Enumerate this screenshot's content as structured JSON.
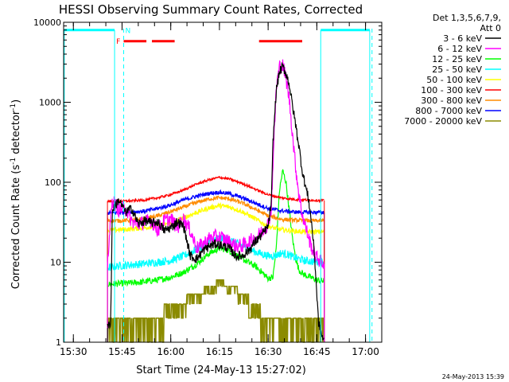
{
  "chart_data": {
    "type": "line",
    "title": "HESSI Observing Summary Count Rates, Corrected",
    "xlabel": "Start Time (24-May-13 15:27:02)",
    "ylabel_main": "Corrected Count Rate (s",
    "ylabel_sup1": "-1",
    "ylabel_mid": " detector",
    "ylabel_sup2": "-1",
    "ylabel_end": ")",
    "xlim_min": [
      927,
      1025
    ],
    "x_ticks": [
      {
        "min": 930,
        "label": "15:30"
      },
      {
        "min": 945,
        "label": "15:45"
      },
      {
        "min": 960,
        "label": "16:00"
      },
      {
        "min": 975,
        "label": "16:15"
      },
      {
        "min": 990,
        "label": "16:30"
      },
      {
        "min": 1005,
        "label": "16:45"
      },
      {
        "min": 1020,
        "label": "17:00"
      }
    ],
    "y_scale": "log",
    "ylim": [
      1,
      10000
    ],
    "y_ticks": [
      {
        "value": 1,
        "label": "1"
      },
      {
        "value": 10,
        "label": "10"
      },
      {
        "value": 100,
        "label": "100"
      },
      {
        "value": 1000,
        "label": "1000"
      },
      {
        "value": 10000,
        "label": "10000"
      }
    ],
    "legend_header": [
      "Det 1,3,5,6,7,9,",
      "Att 0"
    ],
    "series": [
      {
        "name": "3 - 6 keV",
        "color": "#000000",
        "points": [
          [
            940.5,
            1.5
          ],
          [
            941.5,
            1.8
          ],
          [
            942,
            45
          ],
          [
            944,
            60
          ],
          [
            946,
            42
          ],
          [
            948,
            47
          ],
          [
            950,
            30
          ],
          [
            952,
            33
          ],
          [
            954,
            31
          ],
          [
            956,
            32
          ],
          [
            958,
            25
          ],
          [
            960,
            27
          ],
          [
            962,
            32
          ],
          [
            964,
            28
          ],
          [
            966,
            12
          ],
          [
            968,
            11
          ],
          [
            970,
            14
          ],
          [
            972,
            16
          ],
          [
            974,
            17
          ],
          [
            976,
            16
          ],
          [
            978,
            15
          ],
          [
            980,
            12
          ],
          [
            982,
            12
          ],
          [
            984,
            14
          ],
          [
            986,
            18
          ],
          [
            988,
            22
          ],
          [
            990,
            28
          ],
          [
            991,
            55
          ],
          [
            991.5,
            320
          ],
          [
            992.5,
            1400
          ],
          [
            993.5,
            2400
          ],
          [
            994.5,
            2800
          ],
          [
            995.5,
            2300
          ],
          [
            996.5,
            1700
          ],
          [
            997.5,
            900
          ],
          [
            998.5,
            520
          ],
          [
            999.5,
            280
          ],
          [
            1000.5,
            140
          ],
          [
            1001.5,
            90
          ],
          [
            1002.5,
            60
          ],
          [
            1003.5,
            28
          ],
          [
            1004.3,
            12
          ],
          [
            1005.5,
            1.8
          ],
          [
            1006.3,
            1.3
          ],
          [
            1007.3,
            1.0
          ]
        ]
      },
      {
        "name": "6 - 12 keV",
        "color": "#ff00ff",
        "points": [
          [
            940.5,
            10
          ],
          [
            942,
            60
          ],
          [
            944,
            45
          ],
          [
            946,
            48
          ],
          [
            948,
            32
          ],
          [
            950,
            30
          ],
          [
            952,
            32
          ],
          [
            954,
            33
          ],
          [
            956,
            25
          ],
          [
            958,
            33
          ],
          [
            960,
            35
          ],
          [
            962,
            27
          ],
          [
            964,
            35
          ],
          [
            966,
            25
          ],
          [
            968,
            15
          ],
          [
            970,
            17
          ],
          [
            972,
            20
          ],
          [
            974,
            21
          ],
          [
            976,
            20
          ],
          [
            978,
            18
          ],
          [
            980,
            16
          ],
          [
            982,
            16
          ],
          [
            984,
            18
          ],
          [
            986,
            20
          ],
          [
            988,
            24
          ],
          [
            990,
            30
          ],
          [
            991,
            48
          ],
          [
            991.5,
            180
          ],
          [
            992.5,
            1500
          ],
          [
            993.5,
            2800
          ],
          [
            994.5,
            2900
          ],
          [
            995.5,
            2000
          ],
          [
            996.5,
            1100
          ],
          [
            997.5,
            400
          ],
          [
            998.5,
            150
          ],
          [
            999.5,
            70
          ],
          [
            1000.5,
            40
          ],
          [
            1001.5,
            28
          ],
          [
            1002.5,
            20
          ],
          [
            1003.5,
            15
          ],
          [
            1004.5,
            12
          ],
          [
            1005.5,
            11
          ],
          [
            1006.5,
            10
          ],
          [
            1007.3,
            9.5
          ]
        ]
      },
      {
        "name": "12 - 25 keV",
        "color": "#00ff00",
        "points": [
          [
            940.5,
            5.3
          ],
          [
            944,
            5.4
          ],
          [
            948,
            5.5
          ],
          [
            952,
            5.7
          ],
          [
            956,
            6.0
          ],
          [
            960,
            6.5
          ],
          [
            964,
            7.5
          ],
          [
            968,
            9.5
          ],
          [
            972,
            13
          ],
          [
            975,
            15
          ],
          [
            978,
            14
          ],
          [
            982,
            11
          ],
          [
            986,
            9
          ],
          [
            990,
            6.3
          ],
          [
            991.5,
            6.5
          ],
          [
            992.5,
            15
          ],
          [
            993.5,
            80
          ],
          [
            994.5,
            140
          ],
          [
            995.5,
            100
          ],
          [
            996.5,
            45
          ],
          [
            997.5,
            20
          ],
          [
            998.5,
            11
          ],
          [
            999.5,
            8
          ],
          [
            1001,
            7
          ],
          [
            1003,
            6.5
          ],
          [
            1005,
            6.0
          ],
          [
            1007.3,
            5.8
          ]
        ]
      },
      {
        "name": "25 - 50 keV",
        "color": "#00ffff",
        "points": [
          [
            940.5,
            8.5
          ],
          [
            944,
            9.0
          ],
          [
            948,
            9.3
          ],
          [
            952,
            9.6
          ],
          [
            956,
            10
          ],
          [
            960,
            10.5
          ],
          [
            964,
            12
          ],
          [
            968,
            14.5
          ],
          [
            972,
            18
          ],
          [
            975,
            20
          ],
          [
            978,
            19
          ],
          [
            982,
            16
          ],
          [
            986,
            13.5
          ],
          [
            990,
            12
          ],
          [
            992,
            12
          ],
          [
            994,
            13
          ],
          [
            996,
            12.5
          ],
          [
            998,
            11.5
          ],
          [
            1001,
            10.5
          ],
          [
            1004,
            10.2
          ],
          [
            1007.3,
            10
          ]
        ]
      },
      {
        "name": "50 - 100 keV",
        "color": "#ffff00",
        "points": [
          [
            940.5,
            25
          ],
          [
            944,
            25.5
          ],
          [
            948,
            26
          ],
          [
            952,
            27
          ],
          [
            956,
            28.5
          ],
          [
            960,
            31
          ],
          [
            964,
            36
          ],
          [
            968,
            42
          ],
          [
            972,
            48
          ],
          [
            975,
            51
          ],
          [
            978,
            49
          ],
          [
            982,
            43
          ],
          [
            986,
            35
          ],
          [
            990,
            28
          ],
          [
            994,
            25.5
          ],
          [
            998,
            24.5
          ],
          [
            1002,
            24
          ],
          [
            1007.3,
            24
          ]
        ]
      },
      {
        "name": "100 - 300 keV",
        "color": "#ff0000",
        "points": [
          [
            940.5,
            58
          ],
          [
            944,
            58
          ],
          [
            948,
            58.5
          ],
          [
            952,
            60
          ],
          [
            956,
            64
          ],
          [
            960,
            70
          ],
          [
            964,
            80
          ],
          [
            968,
            95
          ],
          [
            972,
            108
          ],
          [
            975,
            115
          ],
          [
            978,
            110
          ],
          [
            982,
            97
          ],
          [
            986,
            82
          ],
          [
            990,
            70
          ],
          [
            994,
            64
          ],
          [
            998,
            61
          ],
          [
            1002,
            60
          ],
          [
            1007.3,
            59
          ]
        ]
      },
      {
        "name": "300 - 800 keV",
        "color": "#ff8c00",
        "points": [
          [
            940.5,
            33
          ],
          [
            944,
            33
          ],
          [
            948,
            33.5
          ],
          [
            952,
            35
          ],
          [
            956,
            38
          ],
          [
            960,
            43
          ],
          [
            964,
            49
          ],
          [
            968,
            56
          ],
          [
            972,
            62
          ],
          [
            975,
            64
          ],
          [
            978,
            62
          ],
          [
            982,
            55
          ],
          [
            986,
            46
          ],
          [
            990,
            38
          ],
          [
            994,
            34.5
          ],
          [
            998,
            33.5
          ],
          [
            1002,
            33
          ],
          [
            1007.3,
            33
          ]
        ]
      },
      {
        "name": "800 - 7000 keV",
        "color": "#0000ff",
        "points": [
          [
            940.5,
            41
          ],
          [
            944,
            42
          ],
          [
            948,
            42.5
          ],
          [
            952,
            43.5
          ],
          [
            956,
            47
          ],
          [
            960,
            52
          ],
          [
            964,
            60
          ],
          [
            968,
            67
          ],
          [
            972,
            73
          ],
          [
            975,
            75
          ],
          [
            978,
            72
          ],
          [
            982,
            64
          ],
          [
            986,
            55
          ],
          [
            990,
            47
          ],
          [
            994,
            44
          ],
          [
            998,
            42.5
          ],
          [
            1002,
            42
          ],
          [
            1007.3,
            42
          ]
        ]
      },
      {
        "name": "7000 - 20000 keV",
        "color": "#8b8b00",
        "points": [
          [
            940.5,
            2.0
          ],
          [
            943,
            2.0
          ],
          [
            944,
            1.5
          ],
          [
            946,
            2.0
          ],
          [
            950,
            2.1
          ],
          [
            954,
            2.2
          ],
          [
            958,
            2.5
          ],
          [
            962,
            3.0
          ],
          [
            966,
            3.7
          ],
          [
            970,
            4.5
          ],
          [
            973,
            5.3
          ],
          [
            975,
            5.7
          ],
          [
            977,
            5.4
          ],
          [
            980,
            4.7
          ],
          [
            983,
            3.8
          ],
          [
            986,
            3.0
          ],
          [
            988,
            2.4
          ],
          [
            990,
            2.0
          ],
          [
            994,
            2.0
          ],
          [
            998,
            2.0
          ],
          [
            1002,
            2.0
          ],
          [
            1005,
            2.0
          ],
          [
            1007.3,
            2.0
          ]
        ]
      }
    ],
    "flags": {
      "name_f": "F",
      "name_n": "N",
      "n_color": "#00ffff",
      "f_color": "#ff0000",
      "night_segments_min": [
        [
          927.2,
          942.7
        ],
        [
          1006.2,
          1021.3
        ]
      ],
      "flare_segments_min": [
        [
          945.5,
          952.5
        ],
        [
          954.2,
          961.2
        ],
        [
          987.2,
          1000.5
        ]
      ],
      "dashed_markers_min": [
        945.5,
        1022
      ]
    },
    "timestamp": "24-May-2013 15:39"
  }
}
